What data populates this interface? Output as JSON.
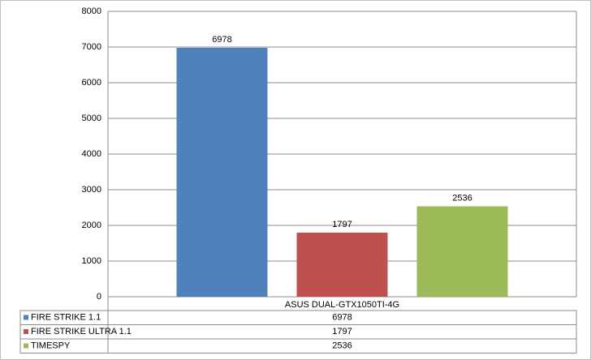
{
  "chart_data": {
    "type": "bar",
    "categories": [
      "ASUS DUAL-GTX1050TI-4G"
    ],
    "series": [
      {
        "name": "FIRE STRIKE 1.1",
        "color": "#4f81bd",
        "values": [
          6978
        ]
      },
      {
        "name": "FIRE STRIKE ULTRA 1.1",
        "color": "#c0504d",
        "values": [
          1797
        ]
      },
      {
        "name": "TIMESPY",
        "color": "#9bbb59",
        "values": [
          2536
        ]
      }
    ],
    "ylim": [
      0,
      8000
    ],
    "yticks": [
      0,
      1000,
      2000,
      3000,
      4000,
      5000,
      6000,
      7000,
      8000
    ],
    "grid": true
  }
}
